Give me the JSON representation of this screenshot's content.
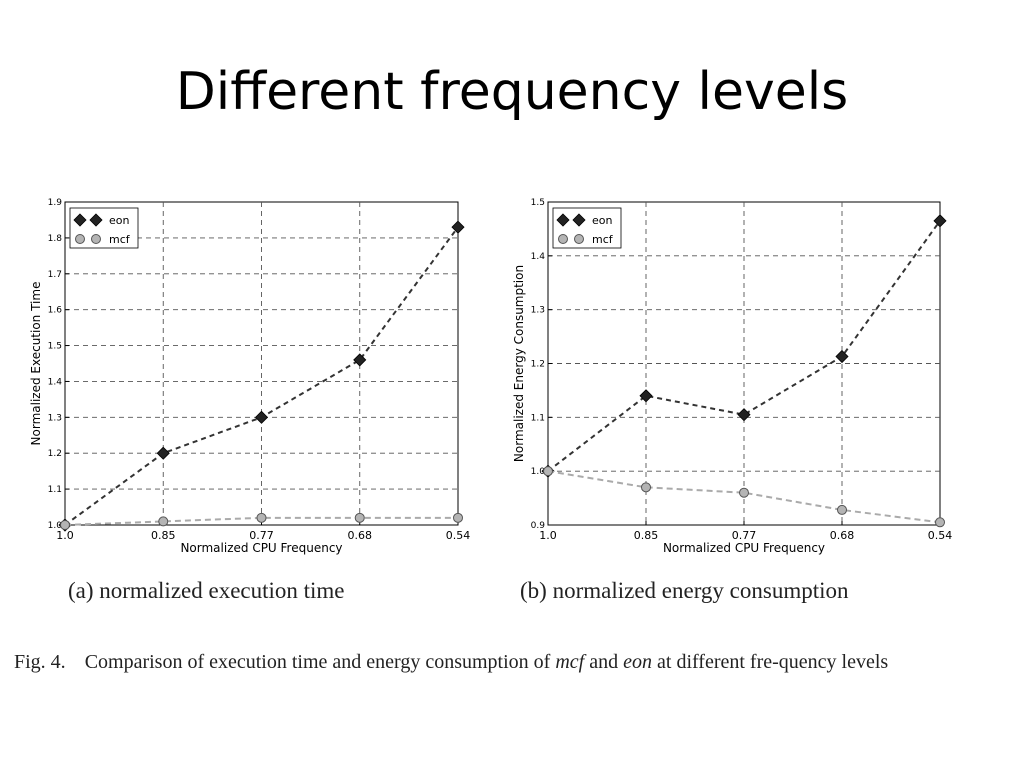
{
  "slide": {
    "title": "Different frequency levels"
  },
  "chart_data": [
    {
      "type": "line",
      "caption": "(a) normalized execution time",
      "xlabel": "Normalized CPU Frequency",
      "ylabel": "Normalized Execution Time",
      "categories": [
        "1.0",
        "0.85",
        "0.77",
        "0.68",
        "0.54"
      ],
      "ylim": [
        1.0,
        1.9
      ],
      "yticks": [
        "1.0",
        "1.1",
        "1.2",
        "1.3",
        "1.4",
        "1.5",
        "1.6",
        "1.7",
        "1.8",
        "1.9"
      ],
      "grid": true,
      "legend": "top-left",
      "series": [
        {
          "name": "eon",
          "marker": "diamond",
          "color": "#333333",
          "values": [
            1.0,
            1.2,
            1.3,
            1.46,
            1.83
          ]
        },
        {
          "name": "mcf",
          "marker": "circle",
          "color": "#aaaaaa",
          "values": [
            1.0,
            1.01,
            1.02,
            1.02,
            1.02
          ]
        }
      ]
    },
    {
      "type": "line",
      "caption": "(b) normalized energy consumption",
      "xlabel": "Normalized CPU Frequency",
      "ylabel": "Normalized Energy Consumption",
      "categories": [
        "1.0",
        "0.85",
        "0.77",
        "0.68",
        "0.54"
      ],
      "ylim": [
        0.9,
        1.5
      ],
      "yticks": [
        "0.9",
        "1.0",
        "1.1",
        "1.2",
        "1.3",
        "1.4",
        "1.5"
      ],
      "grid": true,
      "legend": "top-left",
      "series": [
        {
          "name": "eon",
          "marker": "diamond",
          "color": "#333333",
          "values": [
            1.0,
            1.14,
            1.105,
            1.213,
            1.465
          ]
        },
        {
          "name": "mcf",
          "marker": "circle",
          "color": "#aaaaaa",
          "values": [
            1.0,
            0.97,
            0.96,
            0.928,
            0.905
          ]
        }
      ]
    }
  ],
  "figure": {
    "label": "Fig. 4.",
    "text_a": "Comparison of execution time and energy consumption of ",
    "mcf": "mcf",
    "and": " and ",
    "eon": "eon",
    "text_b": " at different fre-quency levels"
  }
}
